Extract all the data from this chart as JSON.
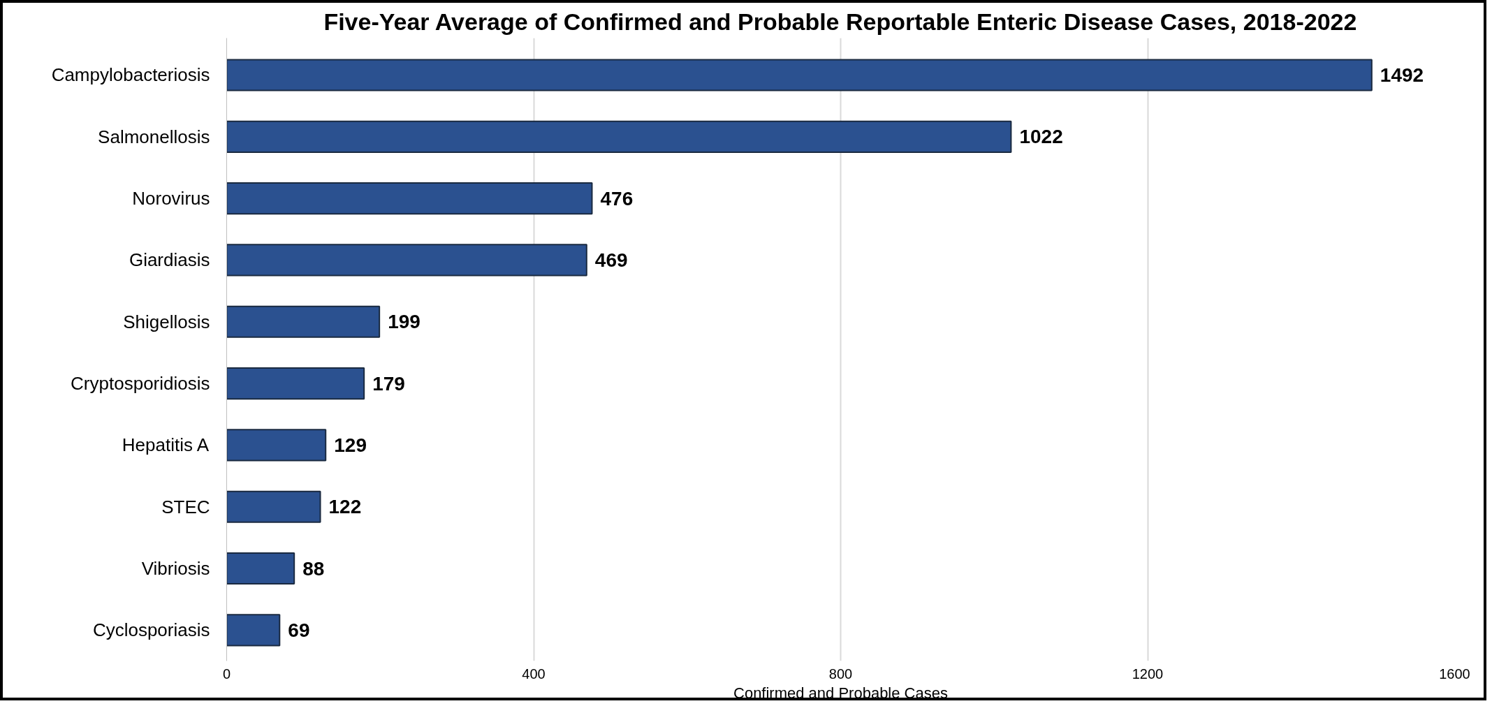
{
  "chart_data": {
    "type": "bar",
    "orientation": "horizontal",
    "title": "Five-Year Average of Confirmed and Probable Reportable Enteric Disease Cases, 2018-2022",
    "xlabel": "Confirmed and Probable Cases",
    "categories": [
      "Campylobacteriosis",
      "Salmonellosis",
      "Norovirus",
      "Giardiasis",
      "Shigellosis",
      "Cryptosporidiosis",
      "Hepatitis A",
      "STEC",
      "Vibriosis",
      "Cyclosporiasis"
    ],
    "values": [
      1492,
      1022,
      476,
      469,
      199,
      179,
      129,
      122,
      88,
      69
    ],
    "color": "#2b5190",
    "xlim": [
      0,
      1600
    ],
    "xticks": [
      0,
      400,
      800,
      1200,
      1600
    ],
    "grid": "x",
    "data_labels": true
  }
}
